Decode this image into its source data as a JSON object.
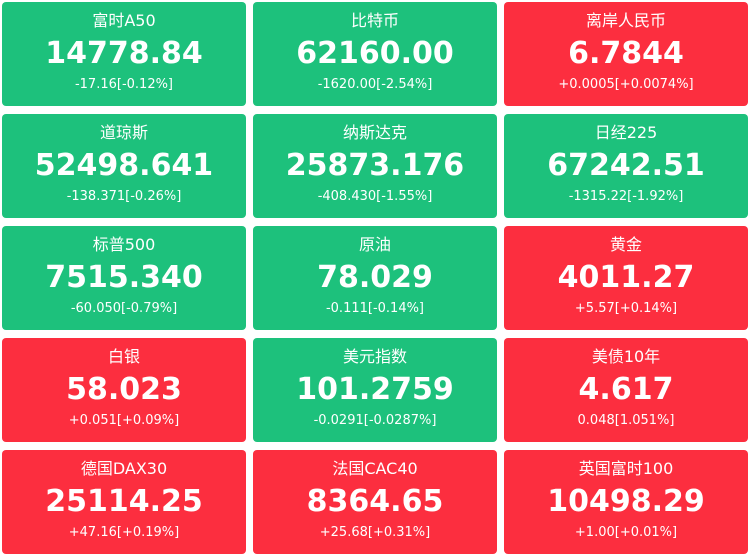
{
  "tiles": [
    {
      "name": "富时A50",
      "value": "14778.84",
      "change": "-17.16[-0.12%]",
      "color": "#1dc17c"
    },
    {
      "name": "比特币",
      "value": "62160.00",
      "change": "-1620.00[-2.54%]",
      "color": "#1dc17c"
    },
    {
      "name": "离岸人民币",
      "value": "6.7844",
      "change": "+0.0005[+0.0074%]",
      "color": "#fc2e3f"
    },
    {
      "name": "道琼斯",
      "value": "52498.641",
      "change": "-138.371[-0.26%]",
      "color": "#1dc17c"
    },
    {
      "name": "纳斯达克",
      "value": "25873.176",
      "change": "-408.430[-1.55%]",
      "color": "#1dc17c"
    },
    {
      "name": "日经225",
      "value": "67242.51",
      "change": "-1315.22[-1.92%]",
      "color": "#1dc17c"
    },
    {
      "name": "标普500",
      "value": "7515.340",
      "change": "-60.050[-0.79%]",
      "color": "#1dc17c"
    },
    {
      "name": "原油",
      "value": "78.029",
      "change": "-0.111[-0.14%]",
      "color": "#1dc17c"
    },
    {
      "name": "黄金",
      "value": "4011.27",
      "change": "+5.57[+0.14%]",
      "color": "#fc2e3f"
    },
    {
      "name": "白银",
      "value": "58.023",
      "change": "+0.051[+0.09%]",
      "color": "#fc2e3f"
    },
    {
      "name": "美元指数",
      "value": "101.2759",
      "change": "-0.0291[-0.0287%]",
      "color": "#1dc17c"
    },
    {
      "name": "美债10年",
      "value": "4.617",
      "change": "0.048[1.051%]",
      "color": "#fc2e3f"
    },
    {
      "name": "德国DAX30",
      "value": "25114.25",
      "change": "+47.16[+0.19%]",
      "color": "#fc2e3f"
    },
    {
      "name": "法国CAC40",
      "value": "8364.65",
      "change": "+25.68[+0.31%]",
      "color": "#fc2e3f"
    },
    {
      "name": "英国富时100",
      "value": "10498.29",
      "change": "+1.00[+0.01%]",
      "color": "#fc2e3f"
    }
  ]
}
